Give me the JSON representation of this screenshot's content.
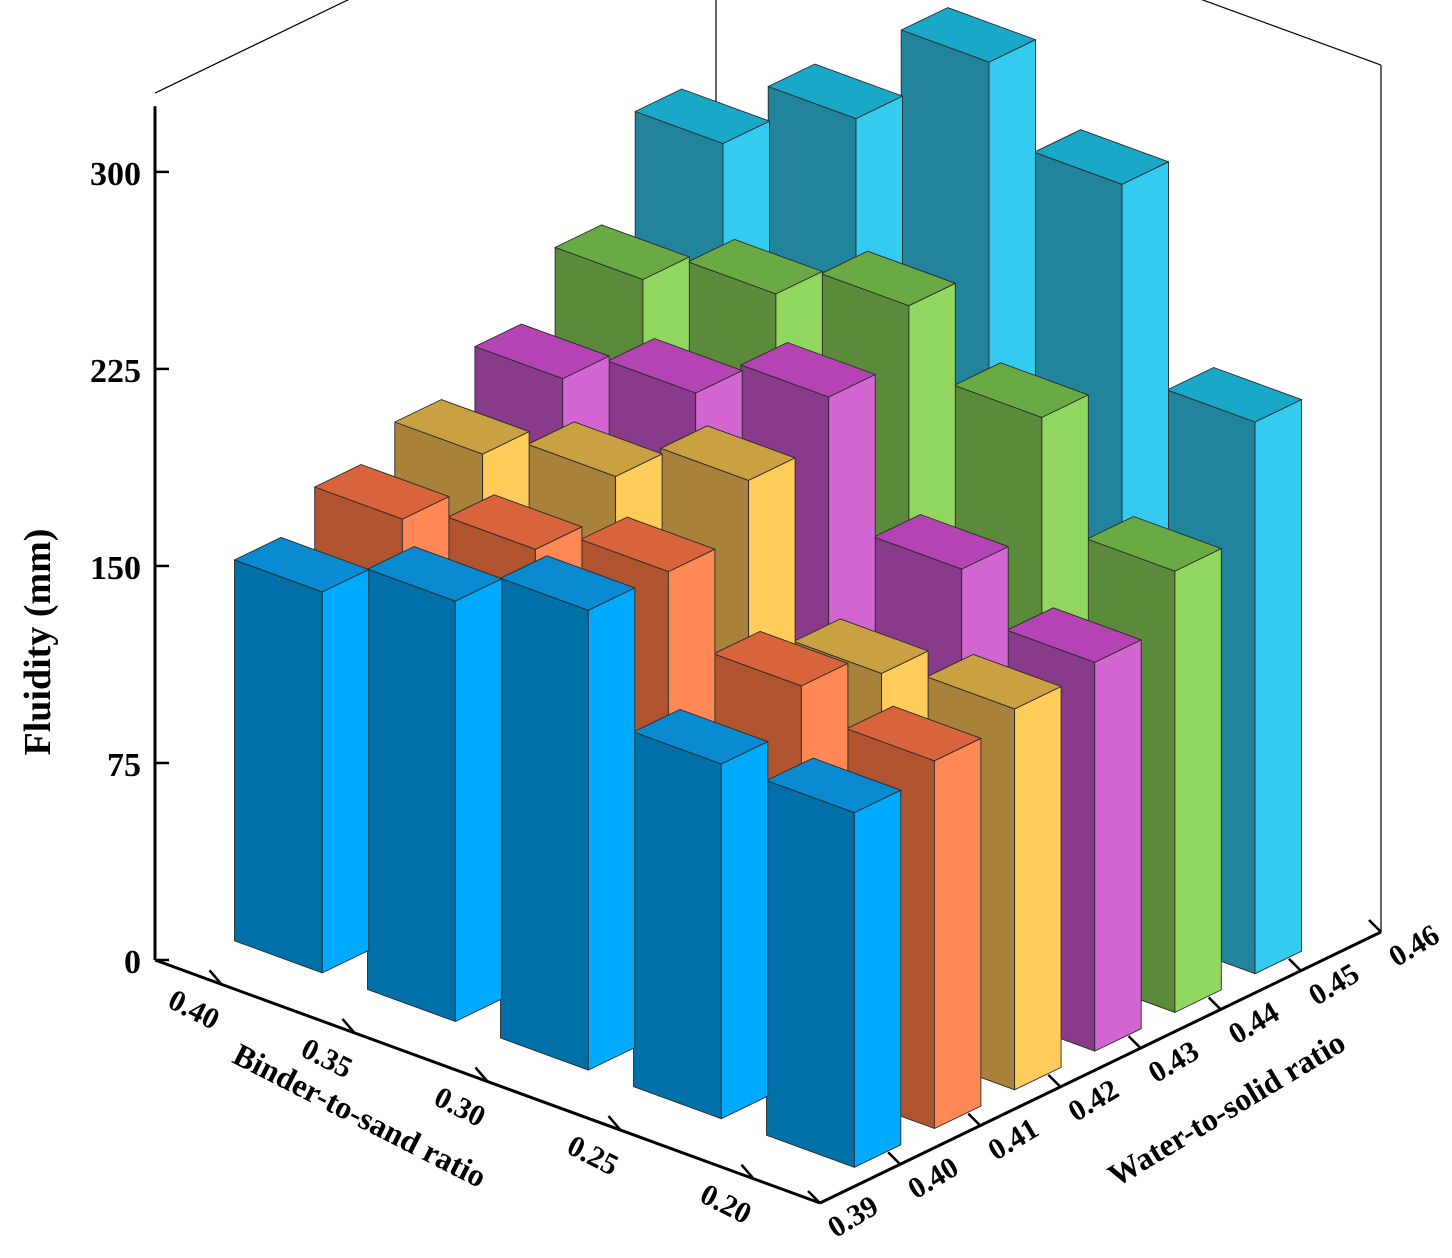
{
  "chart_data": {
    "type": "bar3d",
    "zlabel": "Fluidity (mm)",
    "xlabel": "Binder-to-sand ratio",
    "ylabel": "Water-to-solid ratio",
    "z_ticks": [
      "0",
      "75",
      "150",
      "225",
      "300"
    ],
    "zlim": [
      0,
      330
    ],
    "binder_ticks": [
      "0.40",
      "0.35",
      "0.30",
      "0.25",
      "0.20"
    ],
    "water_ticks": [
      "0.39",
      "0.40",
      "0.41",
      "0.42",
      "0.43",
      "0.44",
      "0.45",
      "0.46"
    ],
    "grid": false,
    "legend": "none",
    "series": [
      {
        "water_to_solid": "0.40",
        "colors": {
          "top": "#0a8ad0",
          "left": "#0070a8",
          "right": "#00aaff"
        },
        "values": [
          145,
          160,
          175,
          135,
          135
        ]
      },
      {
        "water_to_solid": "0.41",
        "colors": {
          "top": "#d8643c",
          "left": "#b05530",
          "right": "#ff8855"
        },
        "values": [
          158,
          165,
          175,
          150,
          140
        ]
      },
      {
        "water_to_solid": "0.42",
        "colors": {
          "top": "#c9a042",
          "left": "#a8823a",
          "right": "#ffcc5a"
        },
        "values": [
          168,
          178,
          195,
          140,
          145
        ]
      },
      {
        "water_to_solid": "0.43",
        "colors": {
          "top": "#b444b4",
          "left": "#8a3a8a",
          "right": "#d466d4"
        },
        "values": [
          182,
          195,
          212,
          165,
          148
        ]
      },
      {
        "water_to_solid": "0.44",
        "colors": {
          "top": "#6aaa44",
          "left": "#5a8a3a",
          "right": "#92d860"
        },
        "values": [
          205,
          218,
          232,
          208,
          168
        ]
      },
      {
        "water_to_solid": "0.45",
        "colors": {
          "top": "#1aa8c8",
          "left": "#22849c",
          "right": "#33ccf0"
        },
        "values": [
          242,
          270,
          310,
          282,
          210
        ]
      }
    ]
  }
}
